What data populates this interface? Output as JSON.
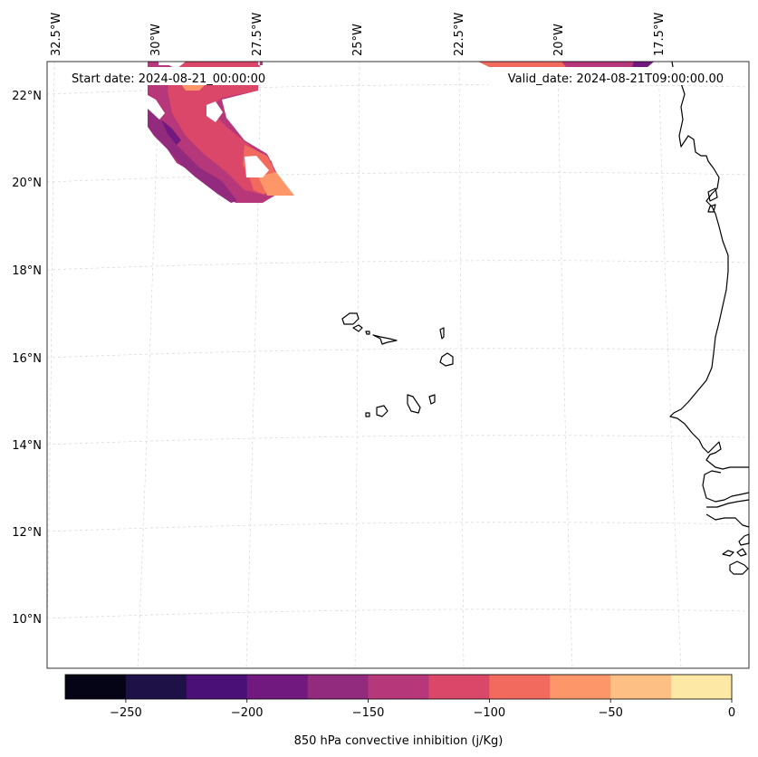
{
  "map": {
    "start_date": "Start date: 2024-08-21_00:00:00",
    "valid_date": "Valid_date: 2024-08-21T09:00:00.00",
    "lon_ticks": [
      "32.5°W",
      "30°W",
      "27.5°W",
      "25°W",
      "22.5°W",
      "20°W",
      "17.5°W"
    ],
    "lat_ticks": [
      "22°N",
      "20°N",
      "18°N",
      "16°N",
      "14°N",
      "12°N",
      "10°N"
    ],
    "region": "Cabo Verde / West Africa coast"
  },
  "colorbar": {
    "label": "850 hPa convective inhibition (j/Kg)",
    "min": -275,
    "max": 0,
    "bins": [
      {
        "from": -275,
        "to": -250,
        "color": "#050417"
      },
      {
        "from": -250,
        "to": -225,
        "color": "#1e1147"
      },
      {
        "from": -225,
        "to": -200,
        "color": "#4b0f78"
      },
      {
        "from": -200,
        "to": -175,
        "color": "#71197f"
      },
      {
        "from": -175,
        "to": -150,
        "color": "#922a7e"
      },
      {
        "from": -150,
        "to": -125,
        "color": "#b6377a"
      },
      {
        "from": -125,
        "to": -100,
        "color": "#da4769"
      },
      {
        "from": -100,
        "to": -75,
        "color": "#f26a5e"
      },
      {
        "from": -75,
        "to": -50,
        "color": "#fd9668"
      },
      {
        "from": -50,
        "to": -25,
        "color": "#febf84"
      },
      {
        "from": -25,
        "to": 0,
        "color": "#fee8a5"
      }
    ],
    "ticks": [
      {
        "value": -250,
        "label": "−250"
      },
      {
        "value": -200,
        "label": "−200"
      },
      {
        "value": -150,
        "label": "−150"
      },
      {
        "value": -100,
        "label": "−100"
      },
      {
        "value": -50,
        "label": "−50"
      },
      {
        "value": 0,
        "label": "0"
      }
    ]
  }
}
